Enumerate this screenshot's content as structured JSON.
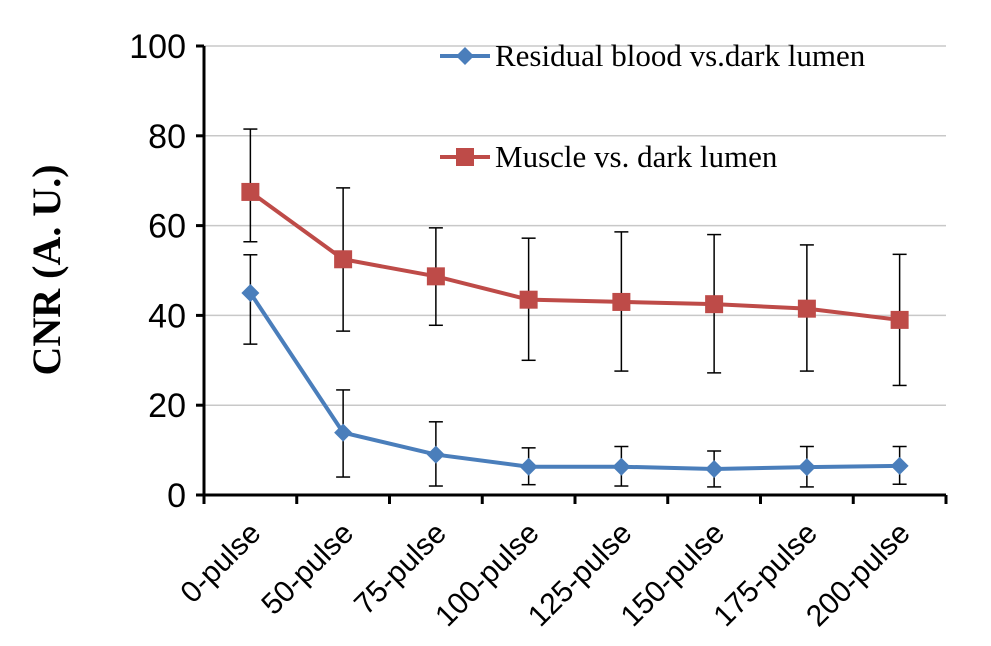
{
  "chart_data": {
    "type": "line",
    "title": "",
    "xlabel": "",
    "ylabel": "CNR (A. U.)",
    "ylim": [
      0,
      100
    ],
    "yticks": [
      0,
      20,
      40,
      60,
      80,
      100
    ],
    "grid": true,
    "legend_placement": "top-right",
    "categories": [
      "0-pulse",
      "50-pulse",
      "75-pulse",
      "100-pulse",
      "125-pulse",
      "150-pulse",
      "175-pulse",
      "200-pulse"
    ],
    "series": [
      {
        "name": "Residual blood vs.dark lumen",
        "color": "#4a7ebb",
        "marker": "diamond",
        "values": [
          45,
          13.9,
          9,
          6.3,
          6.3,
          5.8,
          6.2,
          6.5
        ],
        "error_upper": [
          53.5,
          23.4,
          16.3,
          10.5,
          10.8,
          9.8,
          10.8,
          10.8
        ],
        "error_lower": [
          33.6,
          4,
          2,
          2.3,
          2,
          1.8,
          1.8,
          2.4
        ]
      },
      {
        "name": "Muscle vs. dark lumen",
        "color": "#be4b48",
        "marker": "square",
        "values": [
          67.5,
          52.5,
          48.7,
          43.5,
          43,
          42.5,
          41.5,
          39
        ],
        "error_upper": [
          81.5,
          68.4,
          59.5,
          57.2,
          58.6,
          58,
          55.7,
          53.6
        ],
        "error_lower": [
          56.4,
          36.5,
          37.8,
          30,
          27.6,
          27.2,
          27.6,
          24.4
        ]
      }
    ]
  }
}
